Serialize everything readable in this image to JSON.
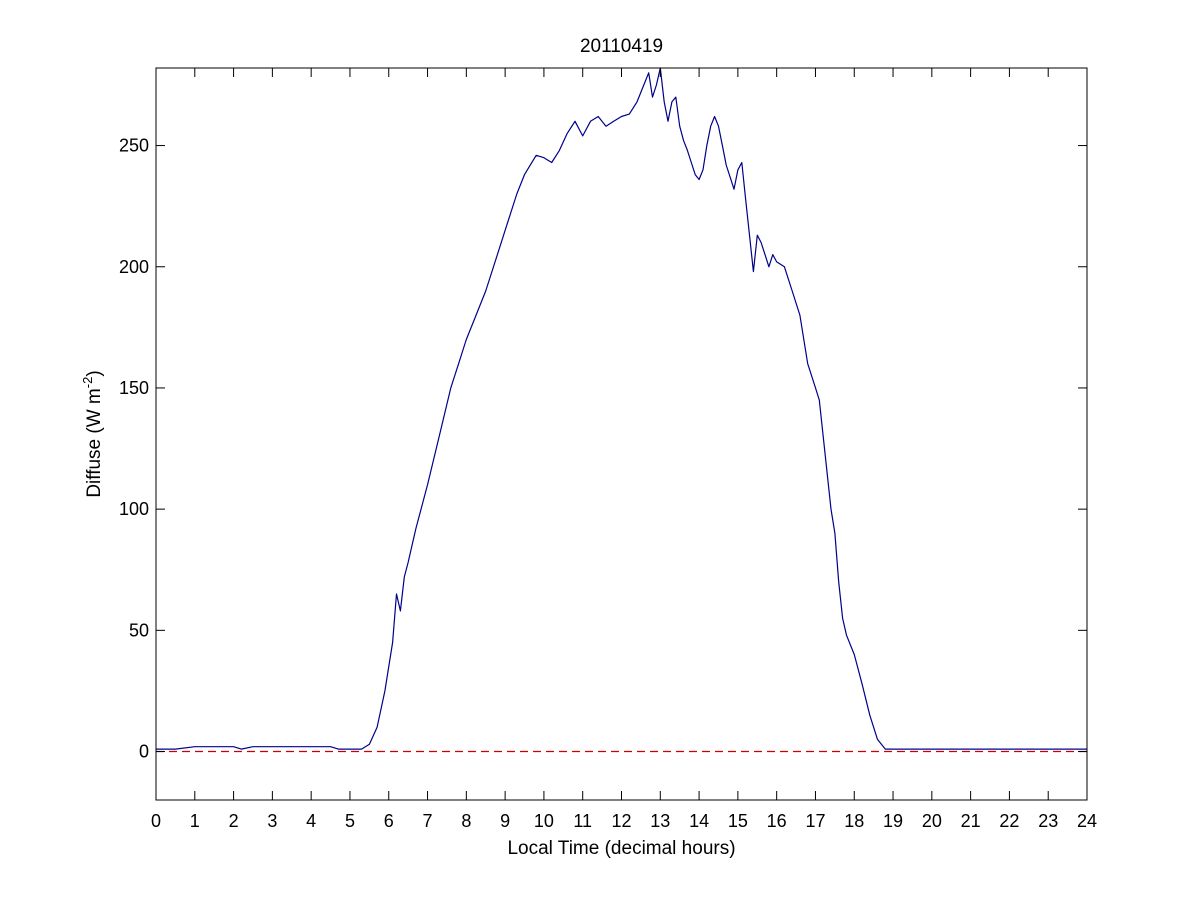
{
  "chart_data": {
    "type": "line",
    "title": "20110419",
    "xlabel": "Local Time (decimal hours)",
    "ylabel": {
      "main": "Diffuse (W m",
      "superscript": "-2",
      "close": ")"
    },
    "xlim": [
      0,
      24
    ],
    "ylim": [
      -20,
      282
    ],
    "xticks": [
      0,
      1,
      2,
      3,
      4,
      5,
      6,
      7,
      8,
      9,
      10,
      11,
      12,
      13,
      14,
      15,
      16,
      17,
      18,
      19,
      20,
      21,
      22,
      23,
      24
    ],
    "yticks": [
      0,
      50,
      100,
      150,
      200,
      250
    ],
    "grid": false,
    "box": true,
    "series": [
      {
        "color": "#00008b",
        "style": "solid",
        "x": [
          0,
          0.5,
          1.0,
          1.5,
          2.0,
          2.2,
          2.5,
          3.0,
          3.5,
          4.0,
          4.5,
          4.7,
          5.0,
          5.3,
          5.5,
          5.7,
          5.9,
          6.1,
          6.2,
          6.3,
          6.4,
          6.5,
          6.7,
          7.0,
          7.3,
          7.6,
          7.8,
          8.0,
          8.2,
          8.5,
          8.8,
          9.0,
          9.3,
          9.5,
          9.8,
          10.0,
          10.2,
          10.4,
          10.6,
          10.8,
          11.0,
          11.2,
          11.4,
          11.6,
          11.8,
          12.0,
          12.2,
          12.4,
          12.6,
          12.7,
          12.8,
          12.9,
          13.0,
          13.1,
          13.2,
          13.3,
          13.4,
          13.5,
          13.6,
          13.7,
          13.8,
          13.9,
          14.0,
          14.1,
          14.2,
          14.3,
          14.4,
          14.5,
          14.6,
          14.7,
          14.8,
          14.9,
          15.0,
          15.1,
          15.2,
          15.3,
          15.4,
          15.5,
          15.6,
          15.7,
          15.8,
          15.9,
          16.0,
          16.2,
          16.4,
          16.6,
          16.8,
          17.0,
          17.1,
          17.2,
          17.3,
          17.4,
          17.5,
          17.6,
          17.7,
          17.8,
          18.0,
          18.2,
          18.4,
          18.6,
          18.8,
          19.0,
          19.2,
          19.5,
          20.0,
          21.0,
          22.0,
          23.0,
          24.0
        ],
        "y": [
          1,
          1,
          2,
          2,
          2,
          1,
          2,
          2,
          2,
          2,
          2,
          1,
          1,
          1,
          3,
          10,
          25,
          45,
          65,
          58,
          72,
          78,
          92,
          110,
          130,
          150,
          160,
          170,
          178,
          190,
          205,
          215,
          230,
          238,
          246,
          245,
          243,
          248,
          255,
          260,
          254,
          260,
          262,
          258,
          260,
          262,
          263,
          268,
          276,
          280,
          270,
          275,
          282,
          268,
          260,
          268,
          270,
          258,
          252,
          248,
          243,
          238,
          236,
          240,
          250,
          258,
          262,
          258,
          250,
          242,
          237,
          232,
          240,
          243,
          228,
          213,
          198,
          213,
          210,
          205,
          200,
          205,
          202,
          200,
          190,
          180,
          160,
          150,
          145,
          130,
          115,
          100,
          90,
          70,
          55,
          48,
          40,
          28,
          15,
          5,
          1,
          1,
          1,
          1,
          1,
          1,
          1,
          1,
          1
        ]
      },
      {
        "color": "#cc0000",
        "style": "dashed",
        "x": [
          0,
          24
        ],
        "y": [
          0,
          0
        ]
      }
    ]
  }
}
